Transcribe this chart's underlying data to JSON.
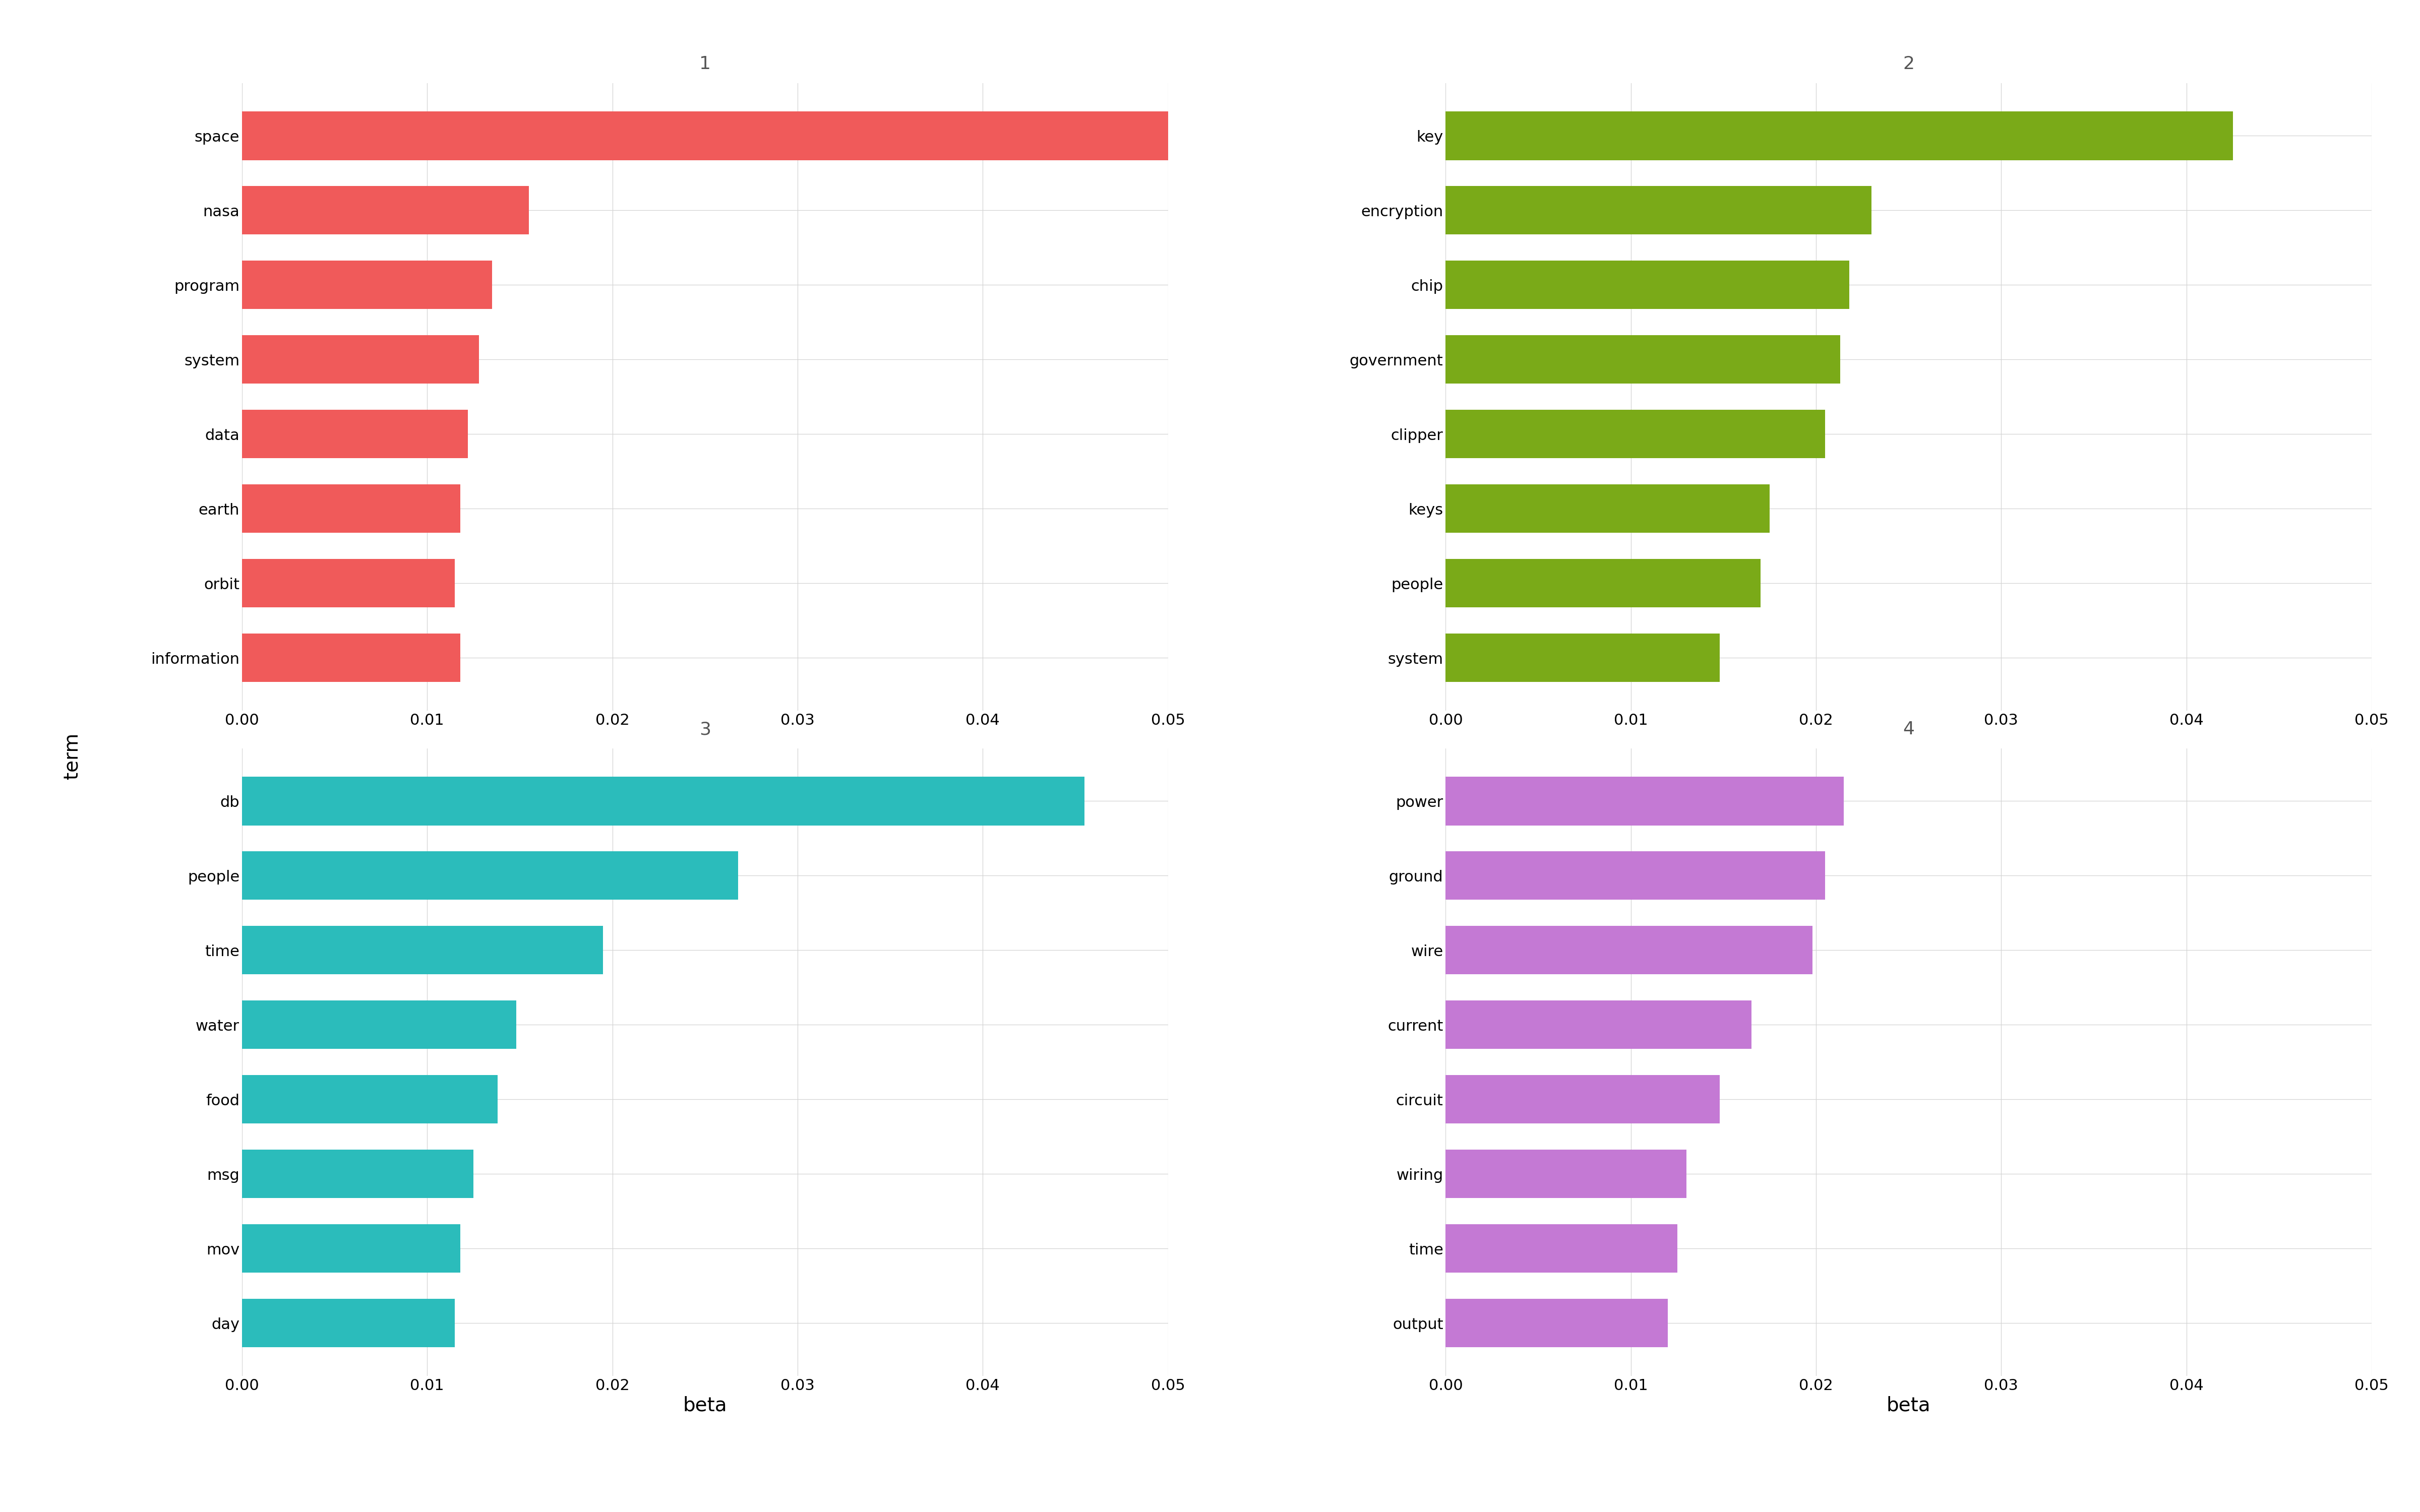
{
  "topics": [
    {
      "id": 1,
      "color": "#f05a5a",
      "words": [
        "space",
        "nasa",
        "program",
        "system",
        "data",
        "earth",
        "orbit",
        "information"
      ],
      "values": [
        0.0507,
        0.0155,
        0.0135,
        0.0128,
        0.0122,
        0.0118,
        0.0115,
        0.0118
      ]
    },
    {
      "id": 2,
      "color": "#7aaa18",
      "words": [
        "key",
        "encryption",
        "chip",
        "government",
        "clipper",
        "keys",
        "people",
        "system"
      ],
      "values": [
        0.0425,
        0.023,
        0.0218,
        0.0213,
        0.0205,
        0.0175,
        0.017,
        0.0148
      ]
    },
    {
      "id": 3,
      "color": "#2bbcbb",
      "words": [
        "db",
        "people",
        "time",
        "water",
        "food",
        "msg",
        "mov",
        "day"
      ],
      "values": [
        0.0455,
        0.0268,
        0.0195,
        0.0148,
        0.0138,
        0.0125,
        0.0118,
        0.0115
      ]
    },
    {
      "id": 4,
      "color": "#c479d4",
      "words": [
        "power",
        "ground",
        "wire",
        "current",
        "circuit",
        "wiring",
        "time",
        "output"
      ],
      "values": [
        0.0215,
        0.0205,
        0.0198,
        0.0165,
        0.0148,
        0.013,
        0.0125,
        0.012
      ]
    }
  ],
  "xlim": [
    0,
    0.05
  ],
  "xticks": [
    0.0,
    0.01,
    0.02,
    0.03,
    0.04,
    0.05
  ],
  "xlabel": "beta",
  "ylabel": "term",
  "background_color": "#ffffff",
  "header_color": "#aaaaaa",
  "header_text_color": "#555555",
  "grid_color": "#d4d4d4",
  "bar_height": 0.65,
  "tick_fontsize": 22,
  "label_fontsize": 28,
  "header_fontsize": 26
}
